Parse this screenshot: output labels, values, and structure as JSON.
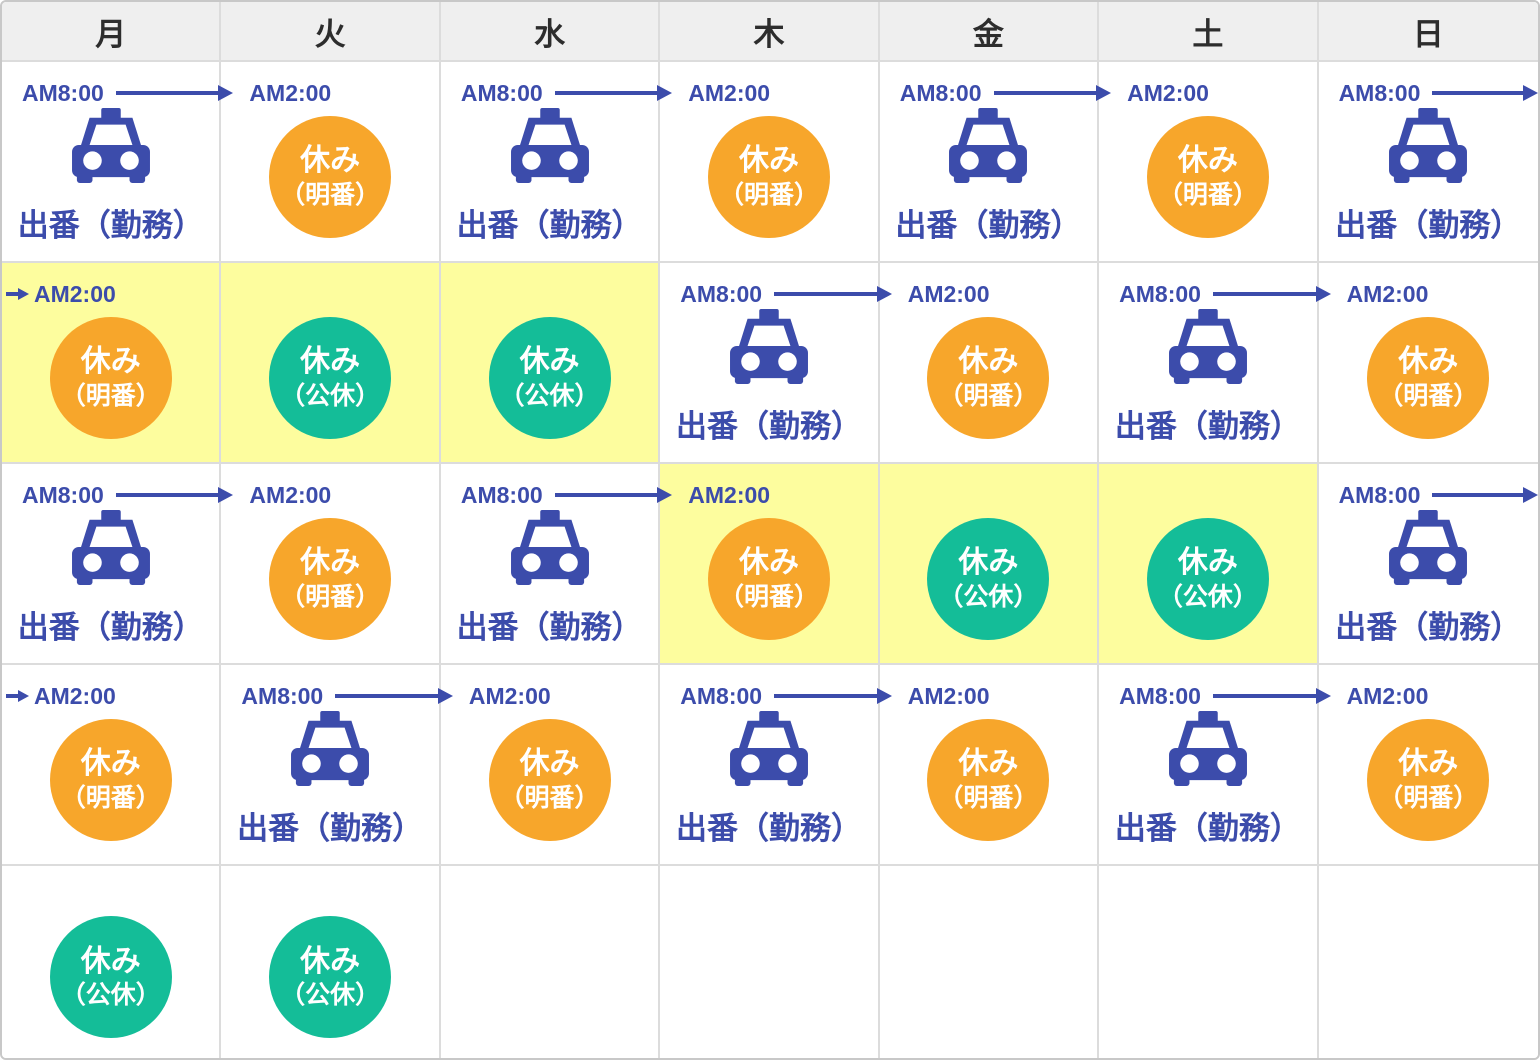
{
  "header": {
    "days": [
      "月",
      "火",
      "水",
      "木",
      "金",
      "土",
      "日"
    ]
  },
  "labels": {
    "work": "出番（勤務）",
    "rest_line1": "休み",
    "akeban": "（明番）",
    "koukyuu": "（公休）",
    "shift_start": "AM8:00",
    "shift_end": "AM2:00"
  },
  "colors": {
    "blue": "#3C4CAB",
    "orange": "#F7A62B",
    "teal": "#14BD98",
    "highlight_yellow": "#FDFD9E",
    "header_bg": "#EFEFEF",
    "grid_border": "#DCDCDC"
  },
  "rows": [
    {
      "cells": [
        {
          "type": "work",
          "time": "AM8:00"
        },
        {
          "type": "rest",
          "kind": "akeban",
          "time": "AM2:00"
        },
        {
          "type": "work",
          "time": "AM8:00"
        },
        {
          "type": "rest",
          "kind": "akeban",
          "time": "AM2:00"
        },
        {
          "type": "work",
          "time": "AM8:00"
        },
        {
          "type": "rest",
          "kind": "akeban",
          "time": "AM2:00"
        },
        {
          "type": "work",
          "time": "AM8:00"
        }
      ]
    },
    {
      "cells": [
        {
          "type": "rest",
          "kind": "akeban",
          "time": "AM2:00",
          "arrow_in": true,
          "highlight": true
        },
        {
          "type": "rest",
          "kind": "koukyuu",
          "highlight": true
        },
        {
          "type": "rest",
          "kind": "koukyuu",
          "highlight": true
        },
        {
          "type": "work",
          "time": "AM8:00"
        },
        {
          "type": "rest",
          "kind": "akeban",
          "time": "AM2:00"
        },
        {
          "type": "work",
          "time": "AM8:00"
        },
        {
          "type": "rest",
          "kind": "akeban",
          "time": "AM2:00"
        }
      ]
    },
    {
      "cells": [
        {
          "type": "work",
          "time": "AM8:00"
        },
        {
          "type": "rest",
          "kind": "akeban",
          "time": "AM2:00"
        },
        {
          "type": "work",
          "time": "AM8:00"
        },
        {
          "type": "rest",
          "kind": "akeban",
          "time": "AM2:00",
          "highlight": true
        },
        {
          "type": "rest",
          "kind": "koukyuu",
          "highlight": true
        },
        {
          "type": "rest",
          "kind": "koukyuu",
          "highlight": true
        },
        {
          "type": "work",
          "time": "AM8:00"
        }
      ]
    },
    {
      "cells": [
        {
          "type": "rest",
          "kind": "akeban",
          "time": "AM2:00",
          "arrow_in": true
        },
        {
          "type": "work",
          "time": "AM8:00"
        },
        {
          "type": "rest",
          "kind": "akeban",
          "time": "AM2:00"
        },
        {
          "type": "work",
          "time": "AM8:00"
        },
        {
          "type": "rest",
          "kind": "akeban",
          "time": "AM2:00"
        },
        {
          "type": "work",
          "time": "AM8:00"
        },
        {
          "type": "rest",
          "kind": "akeban",
          "time": "AM2:00"
        }
      ]
    },
    {
      "cells": [
        {
          "type": "rest",
          "kind": "koukyuu"
        },
        {
          "type": "rest",
          "kind": "koukyuu"
        },
        {
          "type": "empty"
        },
        {
          "type": "empty"
        },
        {
          "type": "empty"
        },
        {
          "type": "empty"
        },
        {
          "type": "empty"
        }
      ]
    }
  ]
}
